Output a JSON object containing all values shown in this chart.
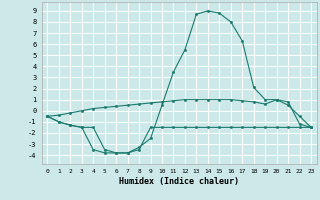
{
  "xlabel": "Humidex (Indice chaleur)",
  "bg_color": "#cce8e8",
  "grid_color": "#ffffff",
  "line_color": "#1a7a6e",
  "xlim": [
    -0.5,
    23.5
  ],
  "ylim": [
    -4.8,
    9.8
  ],
  "xticks": [
    0,
    1,
    2,
    3,
    4,
    5,
    6,
    7,
    8,
    9,
    10,
    11,
    12,
    13,
    14,
    15,
    16,
    17,
    18,
    19,
    20,
    21,
    22,
    23
  ],
  "yticks": [
    -4,
    -3,
    -2,
    -1,
    0,
    1,
    2,
    3,
    4,
    5,
    6,
    7,
    8,
    9
  ],
  "curve1_x": [
    0,
    1,
    2,
    3,
    4,
    5,
    6,
    7,
    8,
    9,
    10,
    11,
    12,
    13,
    14,
    15,
    16,
    17,
    18,
    19,
    20,
    21,
    22,
    23
  ],
  "curve1_y": [
    -0.5,
    -1.0,
    -1.3,
    -1.5,
    -1.5,
    -3.5,
    -3.8,
    -3.8,
    -3.3,
    -2.5,
    0.5,
    3.5,
    5.5,
    8.7,
    9.0,
    8.8,
    8.0,
    6.3,
    2.1,
    1.0,
    1.0,
    0.5,
    -0.5,
    -1.5
  ],
  "curve2_x": [
    0,
    1,
    2,
    3,
    4,
    5,
    6,
    7,
    8,
    9,
    10,
    11,
    12,
    13,
    14,
    15,
    16,
    17,
    18,
    19,
    20,
    21,
    22,
    23
  ],
  "curve2_y": [
    -0.5,
    -1.0,
    -1.3,
    -1.5,
    -3.5,
    -3.8,
    -3.8,
    -3.8,
    -3.5,
    -1.5,
    -1.5,
    -1.5,
    -1.5,
    -1.5,
    -1.5,
    -1.5,
    -1.5,
    -1.5,
    -1.5,
    -1.5,
    -1.5,
    -1.5,
    -1.5,
    -1.5
  ],
  "curve3_x": [
    0,
    1,
    2,
    3,
    4,
    5,
    6,
    7,
    8,
    9,
    10,
    11,
    12,
    13,
    14,
    15,
    16,
    17,
    18,
    19,
    20,
    21,
    22,
    23
  ],
  "curve3_y": [
    -0.5,
    -0.4,
    -0.2,
    0.0,
    0.2,
    0.3,
    0.4,
    0.5,
    0.6,
    0.7,
    0.8,
    0.9,
    1.0,
    1.0,
    1.0,
    1.0,
    1.0,
    0.9,
    0.8,
    0.6,
    1.0,
    0.8,
    -1.2,
    -1.5
  ]
}
